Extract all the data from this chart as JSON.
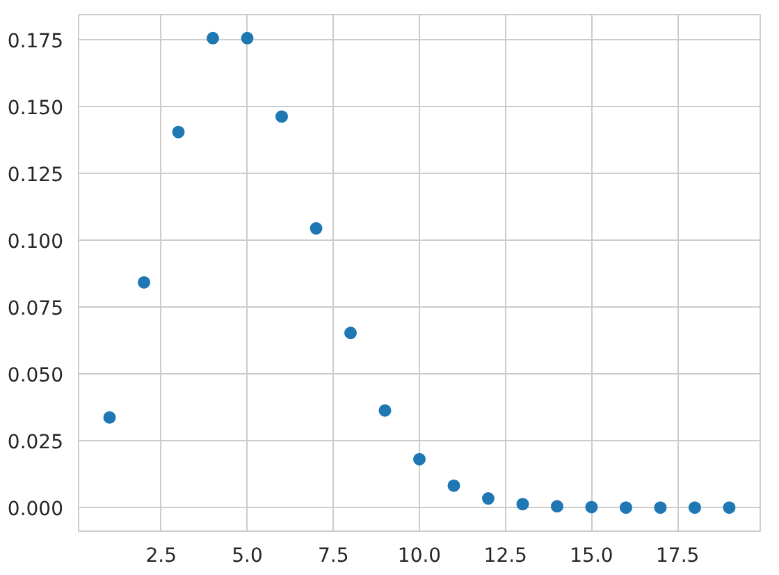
{
  "chart_data": {
    "type": "scatter",
    "x": [
      1,
      2,
      3,
      4,
      5,
      6,
      7,
      8,
      9,
      10,
      11,
      12,
      13,
      14,
      15,
      16,
      17,
      18,
      19
    ],
    "series": [
      {
        "color": "#1f77b4",
        "values": [
          0.0337,
          0.0842,
          0.1404,
          0.1755,
          0.1755,
          0.1462,
          0.1044,
          0.0653,
          0.0363,
          0.0181,
          0.0082,
          0.0034,
          0.0013,
          0.0005,
          0.0002,
          0.0,
          0.0,
          0.0,
          0.0
        ]
      }
    ],
    "xlim": [
      0.1,
      19.9
    ],
    "ylim": [
      -0.0088,
      0.1843
    ],
    "xticks": [
      {
        "value": 2.5,
        "label": "2.5"
      },
      {
        "value": 5,
        "label": "5.0"
      },
      {
        "value": 7.5,
        "label": "7.5"
      },
      {
        "value": 10,
        "label": "10.0"
      },
      {
        "value": 12.5,
        "label": "12.5"
      },
      {
        "value": 15,
        "label": "15.0"
      },
      {
        "value": 17.5,
        "label": "17.5"
      }
    ],
    "yticks": [
      {
        "value": 0,
        "label": "0.000"
      },
      {
        "value": 0.025,
        "label": "0.025"
      },
      {
        "value": 0.05,
        "label": "0.050"
      },
      {
        "value": 0.075,
        "label": "0.075"
      },
      {
        "value": 0.1,
        "label": "0.100"
      },
      {
        "value": 0.125,
        "label": "0.125"
      },
      {
        "value": 0.15,
        "label": "0.150"
      },
      {
        "value": 0.175,
        "label": "0.175"
      }
    ],
    "grid": true,
    "marker": "circle"
  }
}
